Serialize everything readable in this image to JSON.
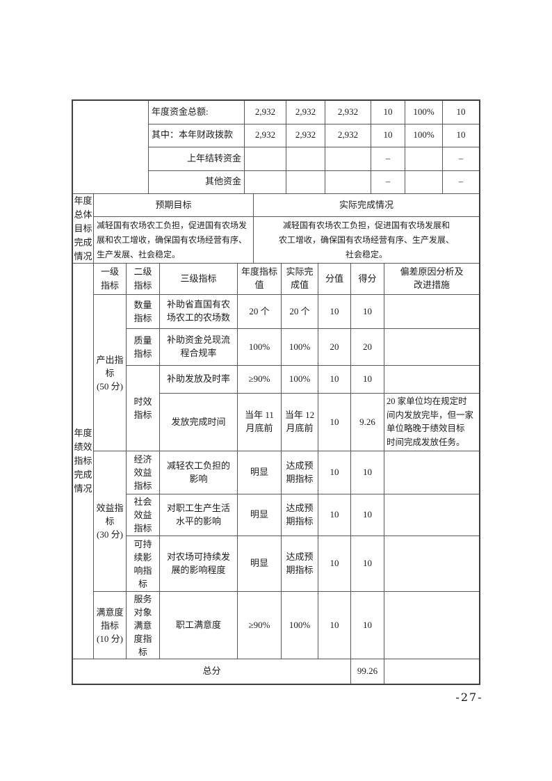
{
  "colors": {
    "border": "#575757",
    "outer_border": "#3f3f3f",
    "text": "#1a1a1a"
  },
  "page": {
    "number_label": "-27-"
  },
  "funding_section": {
    "rows": [
      {
        "label": "年度资金总额:",
        "c1": "2,932",
        "c2": "2,932",
        "c3": "2,932",
        "c4": "10",
        "c5": "100%",
        "c6": "10"
      },
      {
        "label": "其中：本年财政拨款",
        "c1": "2,932",
        "c2": "2,932",
        "c3": "2,932",
        "c4": "10",
        "c5": "100%",
        "c6": "10"
      },
      {
        "label": "上年结转资金",
        "c1": "",
        "c2": "",
        "c3": "",
        "c4": "–",
        "c5": "",
        "c6": "–"
      },
      {
        "label": "其他资金",
        "c1": "",
        "c2": "",
        "c3": "",
        "c4": "–",
        "c5": "",
        "c6": "–"
      }
    ]
  },
  "annual_goal_section": {
    "row_header": "年度\n总体\n目标\n完成\n情况",
    "expected_header": "预期目标",
    "actual_header": "实际完成情况",
    "expected_text": "减轻国有农场农工负担，促进国有农场发\n展和农工增收，确保国有农场经营有序、\n生产发展、社会稳定。",
    "actual_text": "减轻国有农场农工负担，促进国有农场发展和\n农工增收，确保国有农场经营有序、生产发展、\n社会稳定。"
  },
  "indicator_section": {
    "row_header": "年度\n绩效\n指标\n完成\n情况",
    "col_headers": {
      "lv1": "一级\n指标",
      "lv2": "二级\n指标",
      "lv3": "三级指标",
      "target": "年度指标\n值",
      "actual": "实际完\n成值",
      "score": "分值",
      "got": "得分",
      "deviation": "偏差原因分析及\n改进措施"
    },
    "lv1": {
      "output": "产出指\n标\n(50 分)",
      "benefit": "效益指\n标\n(30 分)",
      "satisfaction": "满意度\n指标\n(10 分)"
    },
    "lv2": {
      "quantity": "数量\n指标",
      "quality": "质量\n指标",
      "timeliness": "时效\n指标",
      "economic": "经济\n效益\n指标",
      "social": "社会\n效益\n指标",
      "sustainable": "可持\n续影\n响指\n标",
      "service": "服务\n对象\n满意\n度指\n标"
    },
    "rows": [
      {
        "lv3": "补助省直国有农\n场农工的农场数",
        "target": "20 个",
        "actual": "20 个",
        "score": "10",
        "got": "10",
        "note": ""
      },
      {
        "lv3": "补助资金兑现流\n程合规率",
        "target": "100%",
        "actual": "100%",
        "score": "20",
        "got": "20",
        "note": ""
      },
      {
        "lv3": "补助发放及时率",
        "target": "≥90%",
        "actual": "100%",
        "score": "10",
        "got": "10",
        "note": ""
      },
      {
        "lv3": "发放完成时间",
        "target": "当年 11\n月底前",
        "actual": "当年 12\n月底前",
        "score": "10",
        "got": "9.26",
        "note": "20 家单位均在规定时\n间内发放完毕，但一家\n单位略晚于绩效目标\n时间完成发放任务。"
      },
      {
        "lv3": "减轻农工负担的\n影响",
        "target": "明显",
        "actual": "达成预\n期指标",
        "score": "10",
        "got": "10",
        "note": ""
      },
      {
        "lv3": "对职工生产生活\n水平的影响",
        "target": "明显",
        "actual": "达成预\n期指标",
        "score": "10",
        "got": "10",
        "note": ""
      },
      {
        "lv3": "对农场可持续发\n展的影响程度",
        "target": "明显",
        "actual": "达成预\n期指标",
        "score": "10",
        "got": "10",
        "note": ""
      },
      {
        "lv3": "职工满意度",
        "target": "≥90%",
        "actual": "100%",
        "score": "10",
        "got": "10",
        "note": ""
      }
    ]
  },
  "total_row": {
    "label": "总分",
    "score": "99.26",
    "note": ""
  }
}
